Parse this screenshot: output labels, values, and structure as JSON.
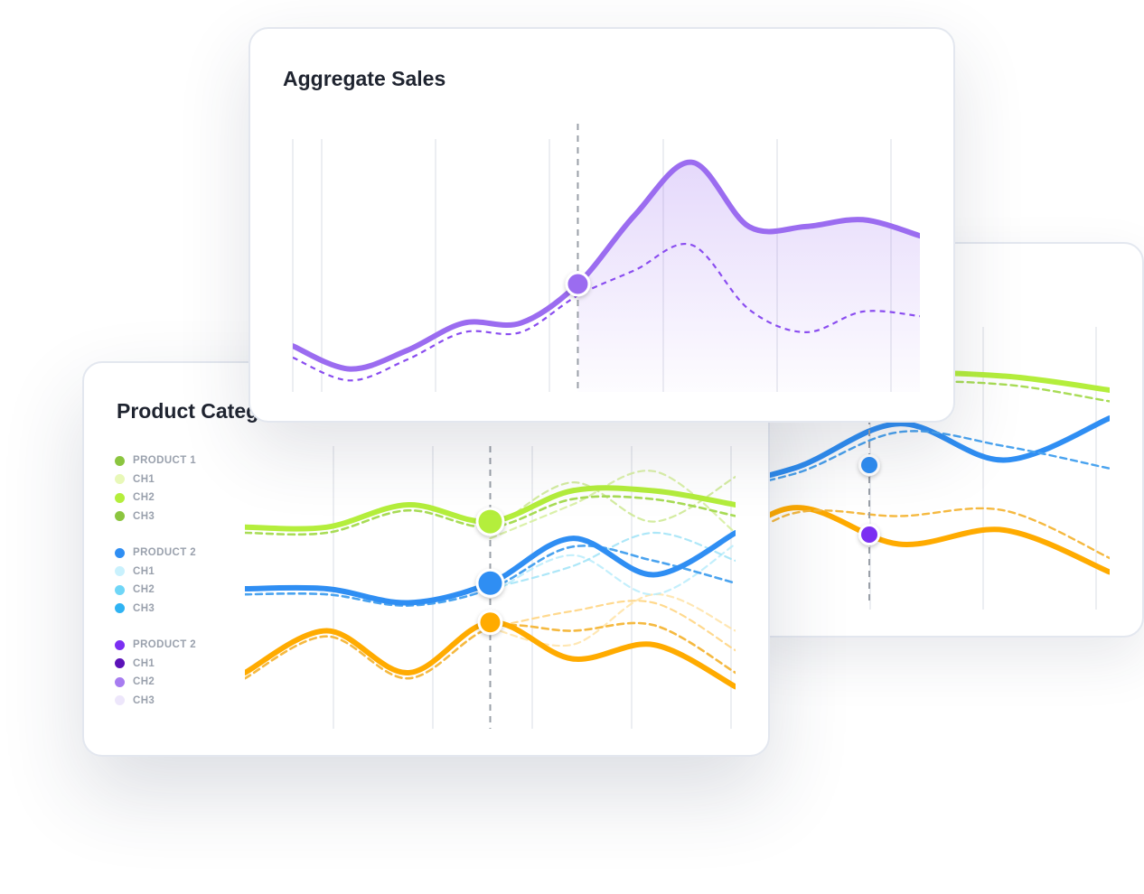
{
  "colors": {
    "purple": "#9b6cf0",
    "purple_dark": "#8a4df0",
    "green": "#b4ee3c",
    "green_dark": "#8fcb39",
    "blue": "#2f8ef3",
    "light_blue": "#6fd6f7",
    "orange": "#ffab00",
    "orange_light": "#ffd27a",
    "grid": "#e6e8ed",
    "guide": "#9aa0a8"
  },
  "aggregate": {
    "title": "Aggregate Sales"
  },
  "categories": {
    "title": "Product Categories",
    "legend": [
      {
        "label": "PRODUCT 1",
        "color": "#8bc53f",
        "items": [
          {
            "label": "CH1",
            "color": "#e8f8b8"
          },
          {
            "label": "CH2",
            "color": "#b4ee3c"
          },
          {
            "label": "CH3",
            "color": "#8bc53f"
          }
        ]
      },
      {
        "label": "PRODUCT 2",
        "color": "#2f8ef3",
        "items": [
          {
            "label": "CH1",
            "color": "#c9f1fd"
          },
          {
            "label": "CH2",
            "color": "#6fd6f7"
          },
          {
            "label": "CH3",
            "color": "#2fb3f3"
          }
        ]
      },
      {
        "label": "PRODUCT 2",
        "color": "#7b2ff2",
        "items": [
          {
            "label": "CH1",
            "color": "#5b12b8"
          },
          {
            "label": "CH2",
            "color": "#a77cf0"
          },
          {
            "label": "CH3",
            "color": "#ede6fb"
          }
        ]
      }
    ]
  },
  "chart_data": [
    {
      "type": "area",
      "title": "Aggregate Sales",
      "x": [
        0,
        1,
        2,
        3,
        4,
        5,
        6,
        7,
        8,
        9,
        10,
        11
      ],
      "series": [
        {
          "style": "solid",
          "values": [
            20,
            10,
            18,
            30,
            30,
            47,
            77,
            100,
            72,
            72,
            75,
            68
          ]
        },
        {
          "style": "dashed",
          "values": [
            15,
            5,
            14,
            26,
            26,
            42,
            53,
            64,
            36,
            26,
            35,
            33
          ]
        }
      ],
      "highlight_index": 5,
      "ylim": [
        0,
        105
      ],
      "grid": true
    },
    {
      "type": "line",
      "title": "Product Categories",
      "x": [
        0,
        1,
        2,
        3,
        4,
        5,
        6
      ],
      "highlight_index": 3,
      "series": [
        {
          "color": "#b4ee3c",
          "style": "solid",
          "values": [
            72,
            72,
            80,
            74,
            85,
            85,
            80
          ]
        },
        {
          "color": "#a8dc55",
          "style": "dashed",
          "values": [
            70,
            70,
            78,
            72,
            82,
            82,
            76
          ]
        },
        {
          "color": "#2f8ef3",
          "style": "solid",
          "values": [
            50,
            50,
            45,
            52,
            68,
            55,
            70
          ]
        },
        {
          "color": "#4aa3ef",
          "style": "dashed",
          "values": [
            48,
            48,
            44,
            50,
            65,
            60,
            52
          ]
        },
        {
          "color": "#ffab00",
          "style": "solid",
          "values": [
            20,
            35,
            20,
            38,
            25,
            30,
            15
          ]
        },
        {
          "color": "#f5b940",
          "style": "dashed",
          "values": [
            18,
            33,
            18,
            36,
            35,
            37,
            20
          ]
        },
        {
          "color": "#cde990",
          "style": "faint",
          "values": [
            72,
            72,
            80,
            70,
            88,
            74,
            90
          ]
        },
        {
          "color": "#d5ef9b",
          "style": "faint",
          "values": [
            72,
            72,
            80,
            68,
            80,
            92,
            70
          ]
        },
        {
          "color": "#9fe3f7",
          "style": "faint",
          "values": [
            50,
            50,
            45,
            50,
            58,
            70,
            60
          ]
        },
        {
          "color": "#b8ecfb",
          "style": "faint",
          "values": [
            50,
            50,
            45,
            48,
            62,
            48,
            66
          ]
        },
        {
          "color": "#ffd27a",
          "style": "faint",
          "values": [
            20,
            35,
            20,
            36,
            42,
            45,
            28
          ]
        },
        {
          "color": "#ffe3a6",
          "style": "faint",
          "values": [
            20,
            35,
            20,
            36,
            30,
            48,
            35
          ]
        }
      ],
      "ylim": [
        0,
        100
      ],
      "grid": true
    }
  ]
}
